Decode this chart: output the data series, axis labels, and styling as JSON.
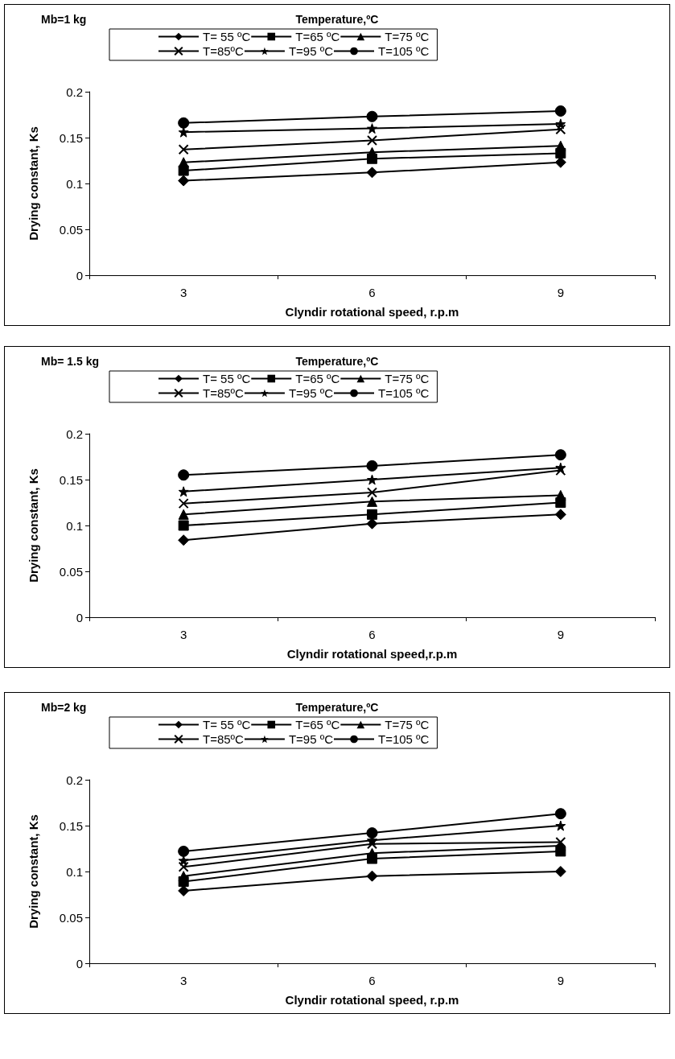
{
  "chart_data": [
    {
      "type": "line",
      "title": "Mb=1 kg",
      "legend_title": "Temperature,ºC",
      "xlabel": "Clyndir rotational speed, r.p.m",
      "ylabel": "Drying constant, Ks",
      "categories": [
        "3",
        "6",
        "9"
      ],
      "ylim": [
        0,
        0.2
      ],
      "yticks": [
        0,
        0.05,
        0.1,
        0.15,
        0.2
      ],
      "grid": false,
      "legend": "top",
      "series": [
        {
          "name": "T= 55 ºC",
          "color": "#000000",
          "marker": "diamond",
          "values": [
            0.103,
            0.112,
            0.123
          ]
        },
        {
          "name": "T=65 ºC",
          "color": "#000000",
          "marker": "square",
          "values": [
            0.114,
            0.127,
            0.133
          ]
        },
        {
          "name": "T=75 ºC",
          "color": "#000000",
          "marker": "triangle",
          "values": [
            0.123,
            0.134,
            0.141
          ]
        },
        {
          "name": "T=85ºC",
          "color": "#000000",
          "marker": "cross",
          "values": [
            0.137,
            0.147,
            0.159
          ]
        },
        {
          "name": "T=95 ºC",
          "color": "#000000",
          "marker": "star",
          "values": [
            0.156,
            0.16,
            0.165
          ]
        },
        {
          "name": "T=105 ºC",
          "color": "#000000",
          "marker": "circle",
          "values": [
            0.166,
            0.173,
            0.179
          ]
        }
      ]
    },
    {
      "type": "line",
      "title": "Mb= 1.5 kg",
      "legend_title": "Temperature,ºC",
      "xlabel": "Clyndir rotational speed,r.p.m",
      "ylabel": "Drying constant, Ks",
      "categories": [
        "3",
        "6",
        "9"
      ],
      "ylim": [
        0,
        0.2
      ],
      "yticks": [
        0,
        0.05,
        0.1,
        0.15,
        0.2
      ],
      "grid": false,
      "legend": "top",
      "series": [
        {
          "name": "T= 55 ºC",
          "color": "#000000",
          "marker": "diamond",
          "values": [
            0.084,
            0.102,
            0.112
          ]
        },
        {
          "name": "T=65 ºC",
          "color": "#000000",
          "marker": "square",
          "values": [
            0.1,
            0.112,
            0.125
          ]
        },
        {
          "name": "T=75 ºC",
          "color": "#000000",
          "marker": "triangle",
          "values": [
            0.112,
            0.126,
            0.133
          ]
        },
        {
          "name": "T=85ºC",
          "color": "#000000",
          "marker": "cross",
          "values": [
            0.124,
            0.136,
            0.16
          ]
        },
        {
          "name": "T=95 ºC",
          "color": "#000000",
          "marker": "star",
          "values": [
            0.137,
            0.15,
            0.163
          ]
        },
        {
          "name": "T=105 ºC",
          "color": "#000000",
          "marker": "circle",
          "values": [
            0.155,
            0.165,
            0.177
          ]
        }
      ]
    },
    {
      "type": "line",
      "title": "Mb=2 kg",
      "legend_title": "Temperature,ºC",
      "xlabel": "Clyndir rotational speed, r.p.m",
      "ylabel": "Drying constant, Ks",
      "categories": [
        "3",
        "6",
        "9"
      ],
      "ylim": [
        0,
        0.2
      ],
      "yticks": [
        0,
        0.05,
        0.1,
        0.15,
        0.2
      ],
      "grid": false,
      "legend": "top",
      "series": [
        {
          "name": "T= 55 ºC",
          "color": "#000000",
          "marker": "diamond",
          "values": [
            0.079,
            0.095,
            0.1
          ]
        },
        {
          "name": "T=65 ºC",
          "color": "#000000",
          "marker": "square",
          "values": [
            0.089,
            0.114,
            0.122
          ]
        },
        {
          "name": "T=75 ºC",
          "color": "#000000",
          "marker": "triangle",
          "values": [
            0.095,
            0.12,
            0.128
          ]
        },
        {
          "name": "T=85ºC",
          "color": "#000000",
          "marker": "cross",
          "values": [
            0.105,
            0.13,
            0.132
          ]
        },
        {
          "name": "T=95 ºC",
          "color": "#000000",
          "marker": "star",
          "values": [
            0.112,
            0.134,
            0.15
          ]
        },
        {
          "name": "T=105 ºC",
          "color": "#000000",
          "marker": "circle",
          "values": [
            0.122,
            0.142,
            0.163
          ]
        }
      ]
    }
  ]
}
